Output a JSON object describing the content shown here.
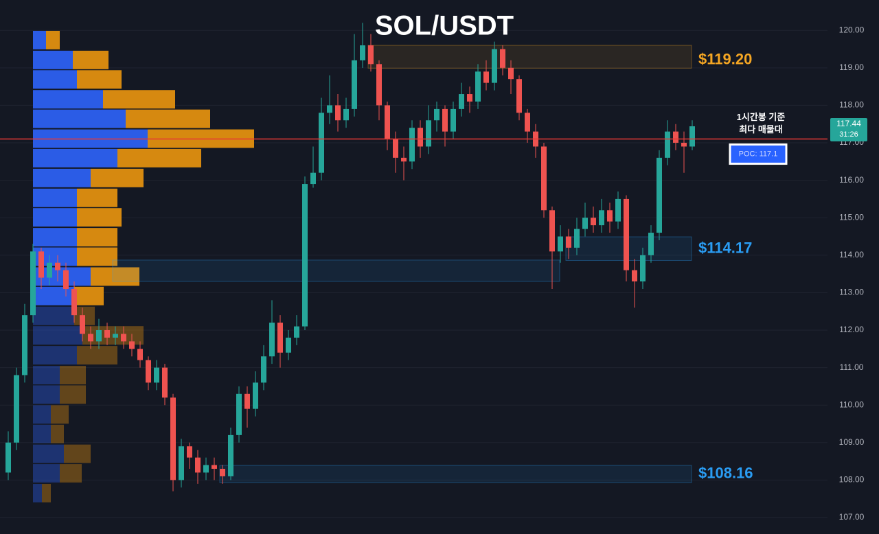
{
  "chart_data": {
    "type": "candlestick",
    "title": "SOL/USDT",
    "ylim": [
      106.56,
      120.81
    ],
    "yticks": [
      {
        "value": 107,
        "label": "107.00"
      },
      {
        "value": 108,
        "label": "108.00"
      },
      {
        "value": 109,
        "label": "109.00"
      },
      {
        "value": 110,
        "label": "110.00"
      },
      {
        "value": 111,
        "label": "111.00"
      },
      {
        "value": 112,
        "label": "112.00"
      },
      {
        "value": 113,
        "label": "113.00"
      },
      {
        "value": 114,
        "label": "114.00"
      },
      {
        "value": 115,
        "label": "115.00"
      },
      {
        "value": 116,
        "label": "116.00"
      },
      {
        "value": 117,
        "label": "117.00"
      },
      {
        "value": 118,
        "label": "118.00"
      },
      {
        "value": 119,
        "label": "119.00"
      },
      {
        "value": 120,
        "label": "120.00"
      }
    ],
    "grid": true,
    "up_color": "#26a69a",
    "down_color": "#ef5350",
    "open": [
      108.2,
      109.0,
      110.8,
      112.4,
      114.1,
      113.4,
      113.8,
      113.6,
      113.1,
      112.4,
      111.9,
      111.7,
      112.0,
      111.8,
      111.9,
      111.7,
      111.5,
      111.2,
      110.6,
      111.0,
      110.2,
      108.0,
      108.9,
      108.6,
      108.2,
      108.4,
      108.3,
      108.1,
      109.2,
      110.3,
      109.9,
      110.6,
      111.3,
      112.2,
      111.4,
      111.8,
      112.1,
      115.9,
      116.2,
      117.8,
      118.0,
      117.6,
      117.9,
      119.2,
      119.6,
      119.1,
      118.0,
      117.1,
      116.6,
      116.5,
      117.4,
      116.9,
      117.6,
      117.9,
      117.3,
      117.9,
      118.3,
      118.1,
      118.9,
      118.6,
      119.5,
      119.0,
      118.7,
      117.8,
      117.3,
      116.9,
      115.2,
      114.1,
      114.5,
      114.2,
      114.7,
      115.0,
      114.8,
      115.2,
      114.9,
      115.5,
      113.6,
      113.3,
      114.0,
      114.6,
      116.6,
      117.3,
      117.0,
      116.9
    ],
    "high": [
      109.3,
      111.0,
      112.7,
      114.3,
      114.2,
      114.0,
      114.0,
      113.8,
      113.3,
      112.6,
      112.1,
      112.3,
      112.2,
      112.1,
      112.1,
      111.9,
      111.7,
      111.3,
      111.2,
      111.1,
      110.3,
      109.1,
      109.0,
      108.8,
      108.6,
      108.6,
      108.4,
      109.4,
      110.5,
      110.5,
      110.9,
      111.6,
      112.8,
      112.4,
      112.0,
      112.4,
      116.1,
      116.9,
      118.2,
      118.8,
      118.3,
      118.2,
      119.9,
      120.2,
      119.9,
      119.2,
      118.1,
      117.3,
      116.9,
      117.6,
      117.6,
      118.0,
      118.1,
      118.0,
      118.1,
      118.6,
      118.5,
      119.1,
      119.2,
      119.7,
      119.6,
      119.2,
      118.8,
      117.9,
      117.5,
      117.0,
      115.3,
      114.8,
      114.7,
      115.0,
      115.4,
      115.3,
      115.5,
      115.4,
      115.7,
      115.6,
      113.9,
      114.2,
      114.8,
      116.8,
      117.6,
      117.5,
      117.3,
      117.6
    ],
    "low": [
      108.0,
      108.8,
      110.6,
      112.2,
      113.1,
      113.2,
      113.3,
      112.9,
      112.2,
      111.7,
      111.5,
      111.5,
      111.6,
      111.6,
      111.5,
      111.3,
      111.0,
      110.4,
      110.4,
      110.0,
      107.7,
      107.8,
      108.3,
      107.9,
      108.0,
      108.0,
      107.9,
      108.0,
      109.0,
      109.4,
      109.7,
      110.4,
      111.1,
      111.0,
      111.2,
      111.6,
      112.0,
      115.8,
      116.0,
      117.5,
      117.3,
      117.4,
      117.7,
      119.0,
      118.9,
      117.6,
      116.8,
      116.2,
      116.0,
      116.3,
      116.6,
      116.7,
      117.3,
      116.9,
      117.1,
      117.7,
      117.8,
      117.9,
      118.4,
      118.4,
      118.8,
      118.3,
      117.6,
      117.0,
      116.6,
      115.0,
      113.1,
      113.8,
      113.9,
      114.0,
      114.5,
      114.6,
      114.6,
      114.6,
      114.7,
      113.3,
      112.6,
      113.1,
      113.8,
      114.4,
      116.4,
      116.8,
      116.2,
      116.8
    ],
    "close": [
      109.0,
      110.8,
      112.4,
      114.1,
      113.4,
      113.8,
      113.6,
      113.1,
      112.4,
      111.9,
      111.7,
      112.0,
      111.8,
      111.9,
      111.7,
      111.5,
      111.2,
      110.6,
      111.0,
      110.2,
      108.0,
      108.9,
      108.6,
      108.2,
      108.4,
      108.3,
      108.1,
      109.2,
      110.3,
      109.9,
      110.6,
      111.3,
      112.2,
      111.4,
      111.8,
      112.1,
      115.9,
      116.2,
      117.8,
      118.0,
      117.6,
      117.9,
      119.2,
      119.6,
      119.1,
      118.0,
      117.1,
      116.6,
      116.5,
      117.4,
      116.9,
      117.6,
      117.9,
      117.3,
      117.9,
      118.3,
      118.1,
      118.9,
      118.6,
      119.5,
      119.0,
      118.7,
      117.8,
      117.3,
      116.9,
      115.2,
      114.1,
      114.5,
      114.2,
      114.7,
      115.0,
      114.8,
      115.2,
      114.9,
      115.5,
      113.6,
      113.3,
      114.0,
      114.6,
      116.6,
      117.3,
      117.0,
      116.9,
      117.44
    ],
    "volume_profile": {
      "levels": [
        119.74,
        119.21,
        118.69,
        118.16,
        117.64,
        117.11,
        116.59,
        116.06,
        115.53,
        115.01,
        114.48,
        113.96,
        113.43,
        112.91,
        112.38,
        111.86,
        111.33,
        110.8,
        110.28,
        109.75,
        109.23,
        108.7,
        108.18,
        107.65
      ],
      "buy": [
        19,
        58,
        64,
        102,
        135,
        167,
        123,
        84,
        64,
        64,
        64,
        64,
        84,
        60,
        60,
        72,
        64,
        39,
        39,
        26,
        26,
        45,
        39,
        13
      ],
      "sell": [
        20,
        52,
        65,
        105,
        123,
        155,
        122,
        77,
        59,
        65,
        59,
        59,
        71,
        43,
        30,
        89,
        59,
        38,
        38,
        26,
        19,
        39,
        32,
        13
      ],
      "buy_color": "#2b5ce6",
      "sell_color": "#d68910",
      "value_area": [
        112.91,
        119.74
      ]
    },
    "zones": [
      {
        "label": "$119.20",
        "value": 119.2,
        "top": 119.6,
        "bottom": 118.99,
        "start": 44,
        "end": 83,
        "color": "#f5a623"
      },
      {
        "label": "$114.17",
        "value": 114.17,
        "top": 114.49,
        "bottom": 113.86,
        "start": 68,
        "end": 83,
        "color": "#2a9df4"
      },
      {
        "top": 113.87,
        "bottom": 113.3,
        "start": 13,
        "end": 67,
        "color": "#2a9df4"
      },
      {
        "label": "$108.16",
        "value": 108.16,
        "top": 108.39,
        "bottom": 107.93,
        "start": 26,
        "end": 83,
        "color": "#2a9df4"
      }
    ],
    "poc": {
      "value": 117.1,
      "label": "POC: 117.1",
      "color": "#e53935"
    },
    "annotation": [
      "1시간봉 기준",
      "최다 매물대"
    ],
    "last_price": {
      "value": 117.44,
      "label": "117.44"
    },
    "countdown": "31:26"
  }
}
